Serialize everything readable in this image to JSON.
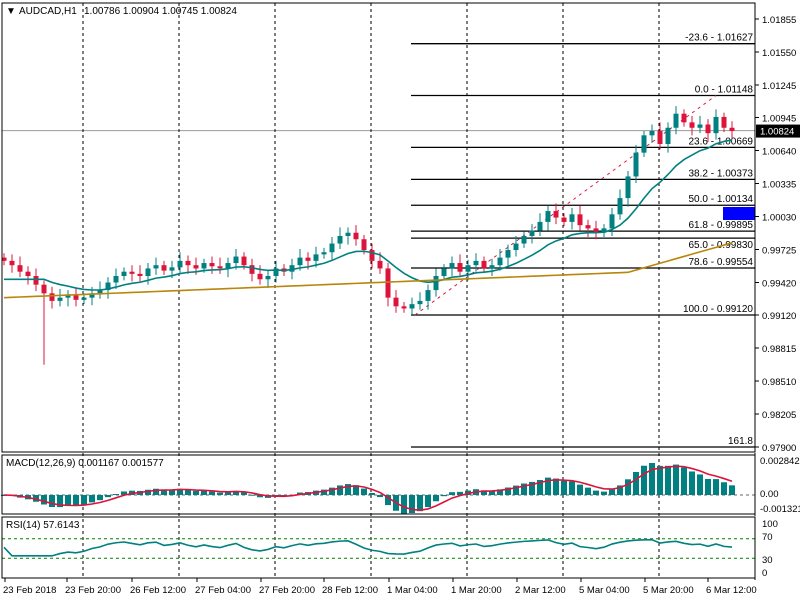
{
  "header": {
    "symbol_info": "AUDCAD,H1",
    "ohlc": "1.00786 1.00904 1.00745 1.00824"
  },
  "price_axis": [
    "1.01855",
    "1.01550",
    "1.01245",
    "1.00945",
    "1.00640",
    "1.00335",
    "1.00030",
    "0.99725",
    "0.99420",
    "0.99120",
    "0.98815",
    "0.98510",
    "0.98205",
    "0.97900"
  ],
  "current_price": "1.00824",
  "fib_levels": [
    {
      "label": "-23.6 - 1.01627",
      "price": 1.01627
    },
    {
      "label": "0.0 - 1.01148",
      "price": 1.01148
    },
    {
      "label": "23.6 - 1.00669",
      "price": 1.00669
    },
    {
      "label": "38.2 - 1.00373",
      "price": 1.00373
    },
    {
      "label": "50.0 - 1.00134",
      "price": 1.00134
    },
    {
      "label": "61.8 - 0.99895",
      "price": 0.99895
    },
    {
      "label": "65.0 - 0.99830",
      "price": 0.9983
    },
    {
      "label": "78.6 - 0.99554",
      "price": 0.99554
    },
    {
      "label": "100.0 - 0.99120",
      "price": 0.9912
    },
    {
      "label": "161.8",
      "price": 0.979
    }
  ],
  "macd": {
    "label": "MACD(12,26,9) 0.001167 0.001577",
    "axis": [
      "0.002842",
      "0.00",
      "-0.001321"
    ]
  },
  "rsi": {
    "label": "RSI(14) 57.6143",
    "axis": [
      "100",
      "70",
      "30",
      "0"
    ]
  },
  "time_axis": [
    "23 Feb 2018",
    "23 Feb 20:00",
    "26 Feb 12:00",
    "27 Feb 04:00",
    "27 Feb 20:00",
    "28 Feb 12:00",
    "1 Mar 04:00",
    "1 Mar 20:00",
    "2 Mar 12:00",
    "5 Mar 04:00",
    "5 Mar 20:00",
    "6 Mar 12:00"
  ],
  "colors": {
    "bull": "#008080",
    "bear": "#dc143c",
    "ma_fast": "#008080",
    "ma_slow": "#b8860b",
    "macd_signal": "#dc143c",
    "rsi": "#008080",
    "rect": "#0000ff"
  },
  "chart_data": {
    "type": "candlestick",
    "closes": [
      0.9962,
      0.9958,
      0.9952,
      0.9948,
      0.994,
      0.9932,
      0.9925,
      0.9928,
      0.993,
      0.9926,
      0.9928,
      0.9932,
      0.9935,
      0.9942,
      0.9948,
      0.9952,
      0.995,
      0.9948,
      0.9955,
      0.9958,
      0.9953,
      0.9956,
      0.9962,
      0.9958,
      0.9955,
      0.996,
      0.9957,
      0.9955,
      0.996,
      0.9966,
      0.9958,
      0.995,
      0.9945,
      0.9948,
      0.9955,
      0.9952,
      0.9958,
      0.9965,
      0.9962,
      0.9968,
      0.997,
      0.9978,
      0.9985,
      0.9988,
      0.9982,
      0.9972,
      0.9962,
      0.9955,
      0.9928,
      0.992,
      0.9918,
      0.9922,
      0.9925,
      0.9935,
      0.9948,
      0.9955,
      0.996,
      0.9952,
      0.9958,
      0.9962,
      0.9955,
      0.9958,
      0.9965,
      0.9972,
      0.9978,
      0.9985,
      0.999,
      0.9998,
      1.0008,
      1.0002,
      0.9998,
      1.0005,
      0.9995,
      0.9992,
      0.9988,
      0.9992,
      1.0005,
      1.002,
      1.004,
      1.0062,
      1.0078,
      1.0082,
      1.007,
      1.0085,
      1.0098,
      1.009,
      1.0085,
      1.0088,
      1.008,
      1.0095,
      1.0085,
      1.0082
    ],
    "price_range": [
      0.979,
      1.01855
    ]
  }
}
